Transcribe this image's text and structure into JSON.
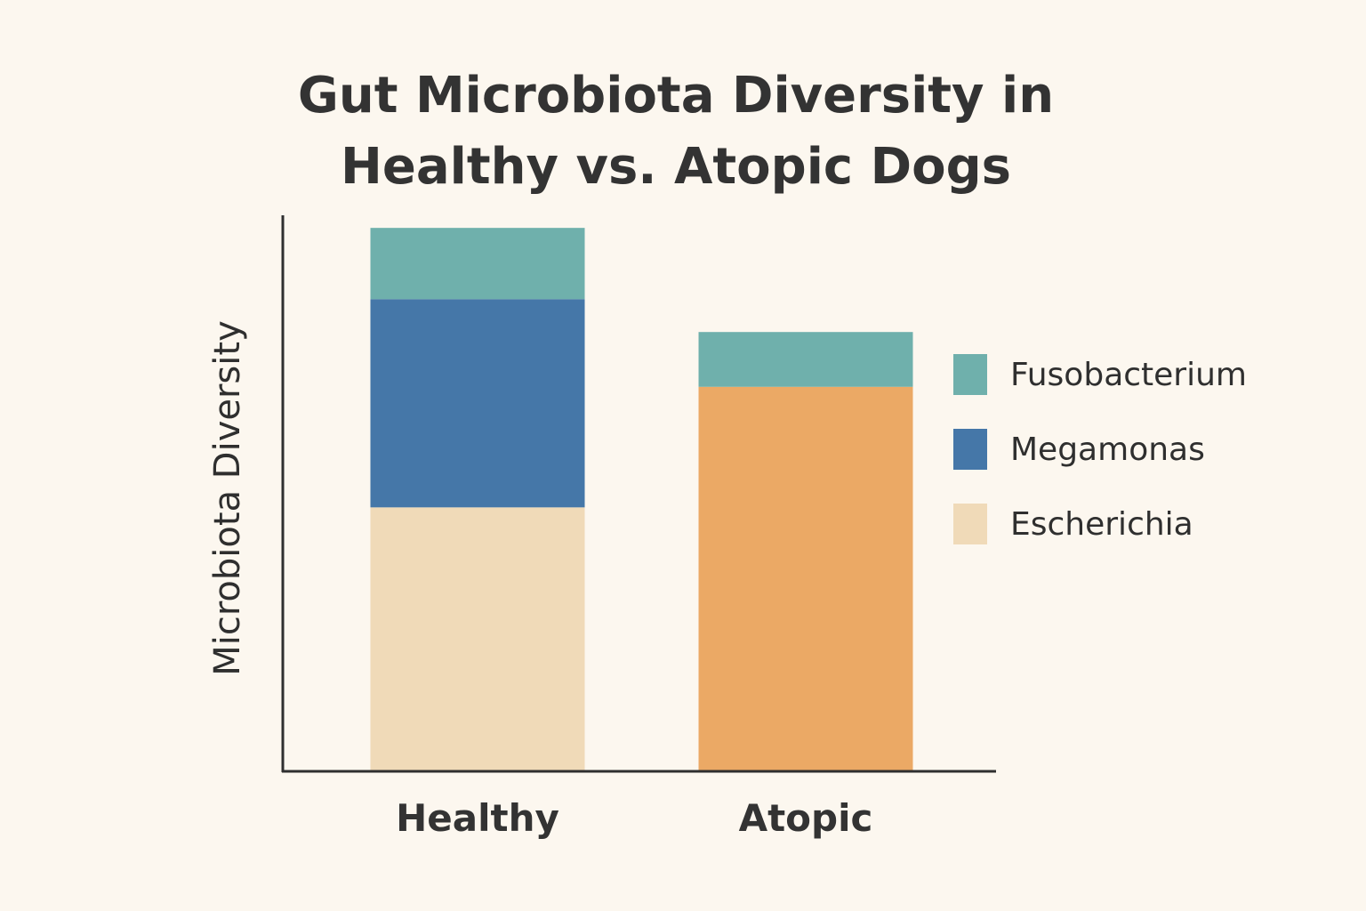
{
  "chart_data": {
    "type": "bar",
    "stacked": true,
    "title_lines": [
      "Gut Microbiota Diversity in",
      "Healthy vs. Atopic Dogs"
    ],
    "xlabel": "",
    "ylabel": "Microbiota Diversity",
    "categories": [
      "Healthy",
      "Atopic"
    ],
    "ylim": [
      0,
      100
    ],
    "y_ticks_shown": false,
    "grid": false,
    "legend_placement": "right",
    "legend": [
      {
        "name": "Fusobacterium",
        "color": "#6fb0ac"
      },
      {
        "name": "Megamonas",
        "color": "#4577a8"
      },
      {
        "name": "Escherichia",
        "color": "#f0dab8"
      }
    ],
    "bars": [
      {
        "category": "Healthy",
        "segments": [
          {
            "color": "#f0dab8",
            "value": 48
          },
          {
            "color": "#4577a8",
            "value": 38
          },
          {
            "color": "#6fb0ac",
            "value": 13
          }
        ]
      },
      {
        "category": "Atopic",
        "segments": [
          {
            "color": "#eba965",
            "value": 70
          },
          {
            "color": "#6fb0ac",
            "value": 10
          }
        ]
      }
    ]
  }
}
